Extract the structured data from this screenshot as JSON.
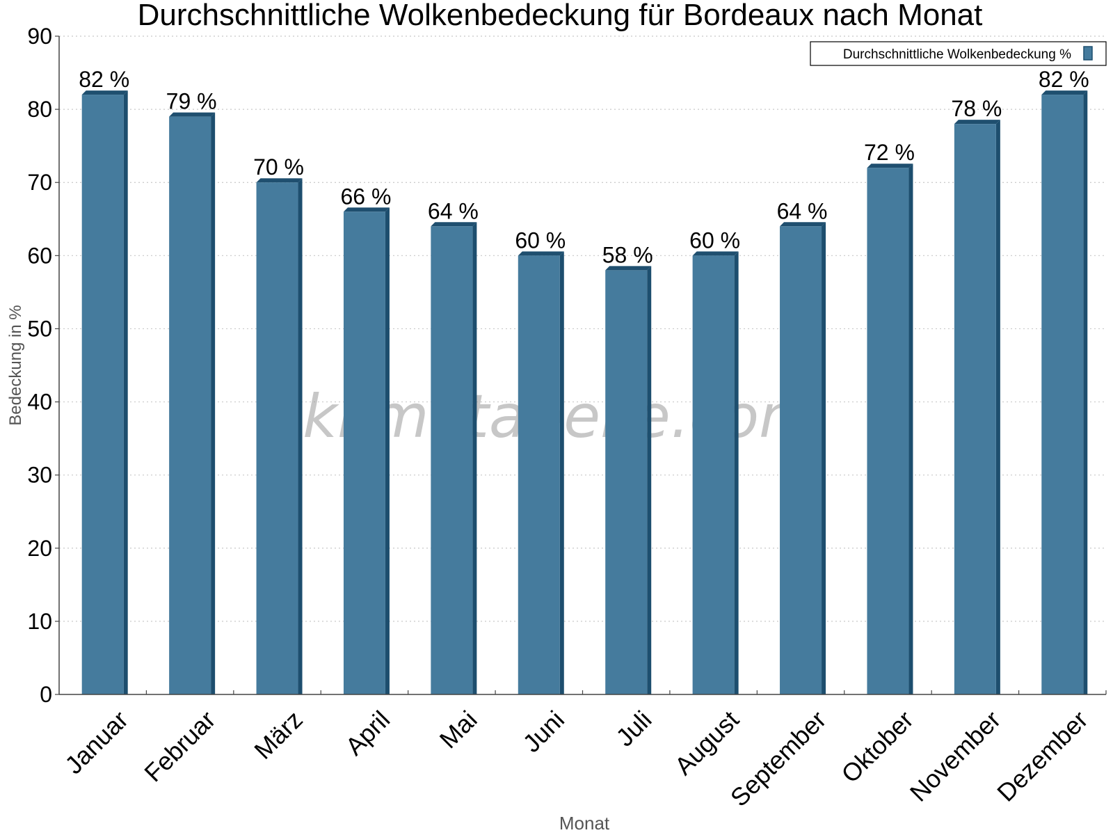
{
  "colors": {
    "bar_face": "#457b9d",
    "bar_side": "#1d4e6e",
    "bar_top": "#1f4f6f",
    "grid": "#c8c8c8",
    "axis": "#444444",
    "text": "#000000",
    "axis_title": "#555555",
    "watermark": "#9a9a9a"
  },
  "watermark": "klimatabelle.com",
  "chart_data": {
    "type": "bar",
    "title": "Durchschnittliche Wolkenbedeckung für Bordeaux nach Monat",
    "xlabel": "Monat",
    "ylabel": "Bedeckung in %",
    "ylim": [
      0,
      90
    ],
    "yticks": [
      0,
      10,
      20,
      30,
      40,
      50,
      60,
      70,
      80,
      90
    ],
    "grid": true,
    "legend_position": "top-right",
    "categories": [
      "Januar",
      "Februar",
      "März",
      "April",
      "Mai",
      "Juni",
      "Juli",
      "August",
      "September",
      "Oktober",
      "November",
      "Dezember"
    ],
    "series": [
      {
        "name": "Durchschnittliche Wolkenbedeckung %",
        "values": [
          82,
          79,
          70,
          66,
          64,
          60,
          58,
          60,
          64,
          72,
          78,
          82
        ]
      }
    ],
    "data_labels": [
      "82 %",
      "79 %",
      "70 %",
      "66 %",
      "64 %",
      "60 %",
      "58 %",
      "60 %",
      "64 %",
      "72 %",
      "78 %",
      "82 %"
    ]
  }
}
